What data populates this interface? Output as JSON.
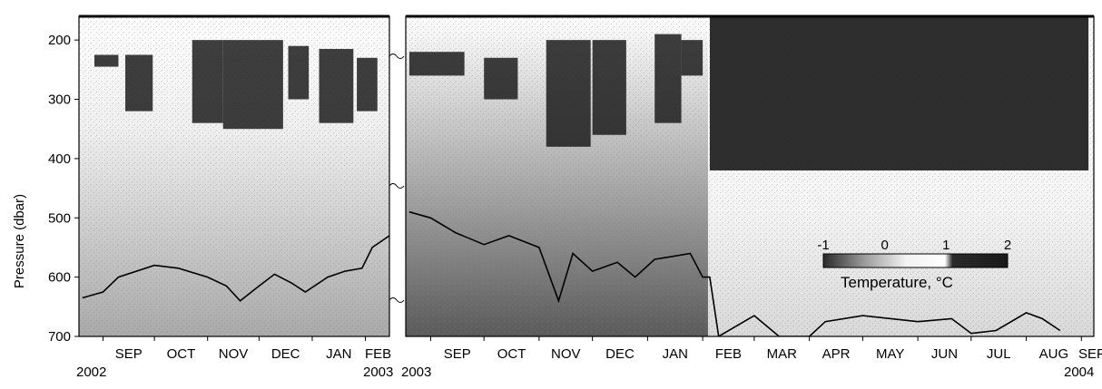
{
  "chart_data": {
    "type": "heatmap",
    "title": "",
    "ylabel": "Pressure (dbar)",
    "ylim": [
      700,
      160
    ],
    "y_ticks": [
      200,
      300,
      400,
      500,
      600,
      700
    ],
    "colorbar": {
      "title": "Temperature, °C",
      "ticks": [
        -1,
        0,
        1,
        2
      ],
      "range": [
        -1,
        2
      ],
      "colors": {
        "low": "#2a2a2a",
        "mid": "#ffffff",
        "high": "#1a1a1a"
      }
    },
    "panels": [
      {
        "x_ticks": [
          "SEP",
          "OCT",
          "NOV",
          "DEC",
          "JAN",
          "FEB"
        ],
        "year_start": "2002",
        "year_end": "2003",
        "warm_layer_patches": [
          {
            "start": "2002-08-27",
            "end": "2002-09-10",
            "top": 225,
            "bottom": 245
          },
          {
            "start": "2002-09-14",
            "end": "2002-09-30",
            "top": 225,
            "bottom": 320
          },
          {
            "start": "2002-10-23",
            "end": "2002-11-10",
            "top": 200,
            "bottom": 340
          },
          {
            "start": "2002-11-10",
            "end": "2002-12-15",
            "top": 200,
            "bottom": 350
          },
          {
            "start": "2002-12-18",
            "end": "2002-12-30",
            "top": 210,
            "bottom": 300
          },
          {
            "start": "2003-01-05",
            "end": "2003-01-25",
            "top": 215,
            "bottom": 340
          },
          {
            "start": "2003-01-27",
            "end": "2003-02-08",
            "top": 230,
            "bottom": 320
          }
        ],
        "mixed_layer_line": {
          "x": [
            "2002-08-20",
            "2002-09-01",
            "2002-09-10",
            "2002-10-01",
            "2002-10-15",
            "2002-11-01",
            "2002-11-12",
            "2002-11-20",
            "2002-12-01",
            "2002-12-10",
            "2002-12-20",
            "2002-12-28",
            "2003-01-10",
            "2003-01-20",
            "2003-01-30",
            "2003-02-05",
            "2003-02-15"
          ],
          "y": [
            635,
            625,
            600,
            580,
            585,
            600,
            615,
            640,
            615,
            595,
            610,
            625,
            600,
            590,
            585,
            550,
            530
          ]
        }
      },
      {
        "x_ticks": [
          "SEP",
          "OCT",
          "NOV",
          "DEC",
          "JAN",
          "FEB",
          "MAR",
          "APR",
          "MAY",
          "JUN",
          "JUL",
          "AUG",
          "SEP"
        ],
        "year_start": "2003",
        "year_end": "2004",
        "warm_layer_patches": [
          {
            "start": "2003-08-20",
            "end": "2003-09-20",
            "top": 220,
            "bottom": 260
          },
          {
            "start": "2003-10-01",
            "end": "2003-10-20",
            "top": 230,
            "bottom": 300
          },
          {
            "start": "2003-11-05",
            "end": "2003-11-30",
            "top": 200,
            "bottom": 380
          },
          {
            "start": "2003-12-01",
            "end": "2003-12-20",
            "top": 200,
            "bottom": 360
          },
          {
            "start": "2004-01-05",
            "end": "2004-01-20",
            "top": 190,
            "bottom": 340
          },
          {
            "start": "2004-01-20",
            "end": "2004-02-01",
            "top": 200,
            "bottom": 260
          },
          {
            "start": "2004-02-05",
            "end": "2004-09-05",
            "top": 160,
            "bottom": 420
          }
        ],
        "mixed_layer_line": {
          "x": [
            "2003-08-20",
            "2003-09-01",
            "2003-09-15",
            "2003-10-01",
            "2003-10-15",
            "2003-11-01",
            "2003-11-12",
            "2003-11-20",
            "2003-12-01",
            "2003-12-15",
            "2003-12-25",
            "2004-01-05",
            "2004-01-15",
            "2004-01-25",
            "2004-02-01",
            "2004-02-05",
            "2004-02-10",
            "2004-03-01",
            "2004-03-15",
            "2004-04-01",
            "2004-04-10",
            "2004-05-01",
            "2004-06-01",
            "2004-06-20",
            "2004-07-01",
            "2004-07-15",
            "2004-08-01",
            "2004-08-10",
            "2004-08-20"
          ],
          "y": [
            490,
            500,
            525,
            545,
            530,
            550,
            640,
            560,
            590,
            575,
            600,
            570,
            565,
            560,
            600,
            600,
            700,
            665,
            700,
            700,
            675,
            665,
            675,
            670,
            695,
            690,
            660,
            670,
            690
          ]
        }
      }
    ]
  }
}
